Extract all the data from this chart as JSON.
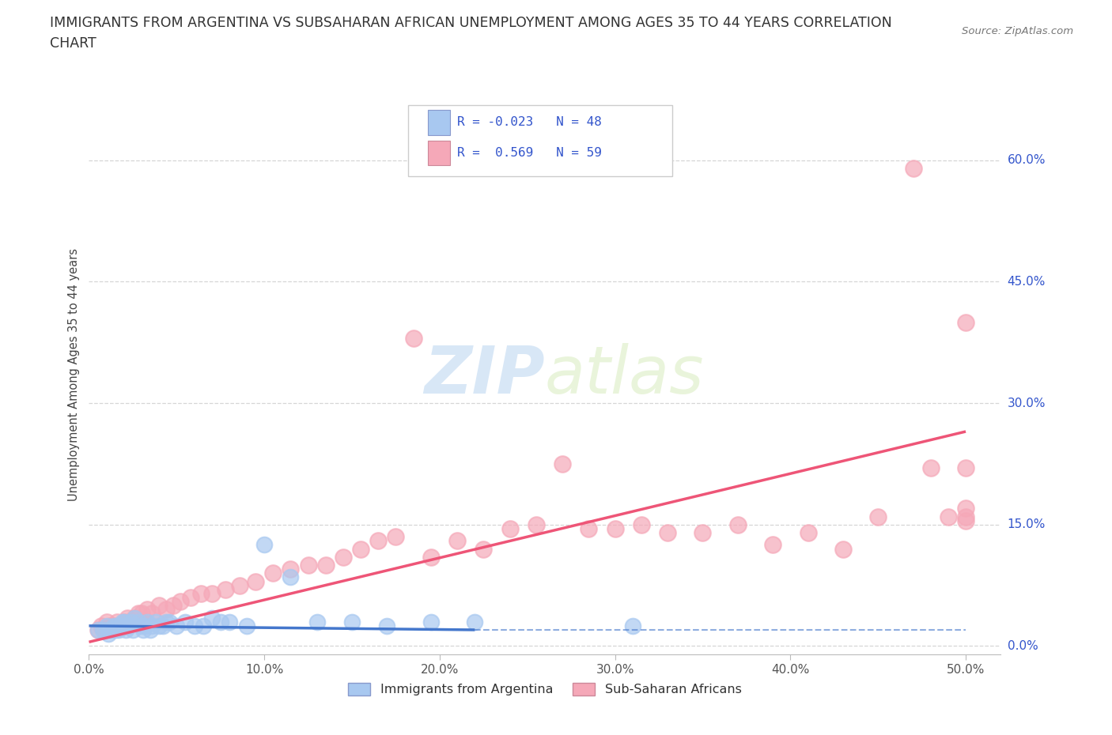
{
  "title_line1": "IMMIGRANTS FROM ARGENTINA VS SUBSAHARAN AFRICAN UNEMPLOYMENT AMONG AGES 35 TO 44 YEARS CORRELATION",
  "title_line2": "CHART",
  "source": "Source: ZipAtlas.com",
  "ylabel": "Unemployment Among Ages 35 to 44 years",
  "xlim": [
    0.0,
    0.52
  ],
  "ylim": [
    -0.01,
    0.68
  ],
  "ytick_positions": [
    0.0,
    0.15,
    0.3,
    0.45,
    0.6
  ],
  "ytick_labels": [
    "0.0%",
    "15.0%",
    "30.0%",
    "45.0%",
    "60.0%"
  ],
  "xtick_positions": [
    0.0,
    0.1,
    0.2,
    0.3,
    0.4,
    0.5
  ],
  "xtick_labels": [
    "0.0%",
    "10.0%",
    "20.0%",
    "30.0%",
    "40.0%",
    "50.0%"
  ],
  "watermark": "ZIPatlas",
  "legend_text1": "R = -0.023   N = 48",
  "legend_text2": "R =  0.569   N = 59",
  "color_argentina": "#a8c8f0",
  "color_africa": "#f5a8b8",
  "color_line_argentina": "#4477cc",
  "color_line_africa": "#ee5577",
  "color_text_blue": "#3355cc",
  "grid_color": "#cccccc",
  "background_color": "#ffffff",
  "arg_line_x_end": 0.22,
  "arg_line_y_start": 0.025,
  "arg_line_y_end": 0.02,
  "afr_line_x_start": 0.0,
  "afr_line_x_end": 0.5,
  "afr_line_y_start": 0.005,
  "afr_line_y_end": 0.265,
  "argentina_x": [
    0.005,
    0.008,
    0.01,
    0.011,
    0.012,
    0.013,
    0.014,
    0.015,
    0.016,
    0.017,
    0.018,
    0.019,
    0.02,
    0.02,
    0.021,
    0.022,
    0.023,
    0.024,
    0.025,
    0.026,
    0.028,
    0.03,
    0.031,
    0.032,
    0.033,
    0.035,
    0.036,
    0.038,
    0.04,
    0.042,
    0.044,
    0.046,
    0.05,
    0.055,
    0.06,
    0.065,
    0.07,
    0.075,
    0.08,
    0.09,
    0.1,
    0.115,
    0.13,
    0.15,
    0.17,
    0.195,
    0.22,
    0.31
  ],
  "argentina_y": [
    0.02,
    0.02,
    0.025,
    0.015,
    0.02,
    0.02,
    0.025,
    0.02,
    0.025,
    0.02,
    0.025,
    0.03,
    0.03,
    0.025,
    0.02,
    0.025,
    0.025,
    0.03,
    0.02,
    0.035,
    0.03,
    0.025,
    0.02,
    0.025,
    0.03,
    0.02,
    0.025,
    0.03,
    0.025,
    0.025,
    0.03,
    0.03,
    0.025,
    0.03,
    0.025,
    0.025,
    0.035,
    0.03,
    0.03,
    0.025,
    0.125,
    0.085,
    0.03,
    0.03,
    0.025,
    0.03,
    0.03,
    0.025
  ],
  "africa_x": [
    0.005,
    0.007,
    0.009,
    0.01,
    0.012,
    0.014,
    0.016,
    0.018,
    0.02,
    0.022,
    0.024,
    0.026,
    0.028,
    0.03,
    0.033,
    0.036,
    0.04,
    0.044,
    0.048,
    0.052,
    0.058,
    0.064,
    0.07,
    0.078,
    0.086,
    0.095,
    0.105,
    0.115,
    0.125,
    0.135,
    0.145,
    0.155,
    0.165,
    0.175,
    0.185,
    0.195,
    0.21,
    0.225,
    0.24,
    0.255,
    0.27,
    0.285,
    0.3,
    0.315,
    0.33,
    0.35,
    0.37,
    0.39,
    0.41,
    0.43,
    0.45,
    0.47,
    0.48,
    0.49,
    0.5,
    0.5,
    0.5,
    0.5,
    0.5
  ],
  "africa_y": [
    0.02,
    0.025,
    0.02,
    0.03,
    0.025,
    0.025,
    0.03,
    0.025,
    0.03,
    0.035,
    0.03,
    0.035,
    0.04,
    0.04,
    0.045,
    0.04,
    0.05,
    0.045,
    0.05,
    0.055,
    0.06,
    0.065,
    0.065,
    0.07,
    0.075,
    0.08,
    0.09,
    0.095,
    0.1,
    0.1,
    0.11,
    0.12,
    0.13,
    0.135,
    0.38,
    0.11,
    0.13,
    0.12,
    0.145,
    0.15,
    0.225,
    0.145,
    0.145,
    0.15,
    0.14,
    0.14,
    0.15,
    0.125,
    0.14,
    0.12,
    0.16,
    0.59,
    0.22,
    0.16,
    0.4,
    0.22,
    0.17,
    0.16,
    0.155
  ]
}
